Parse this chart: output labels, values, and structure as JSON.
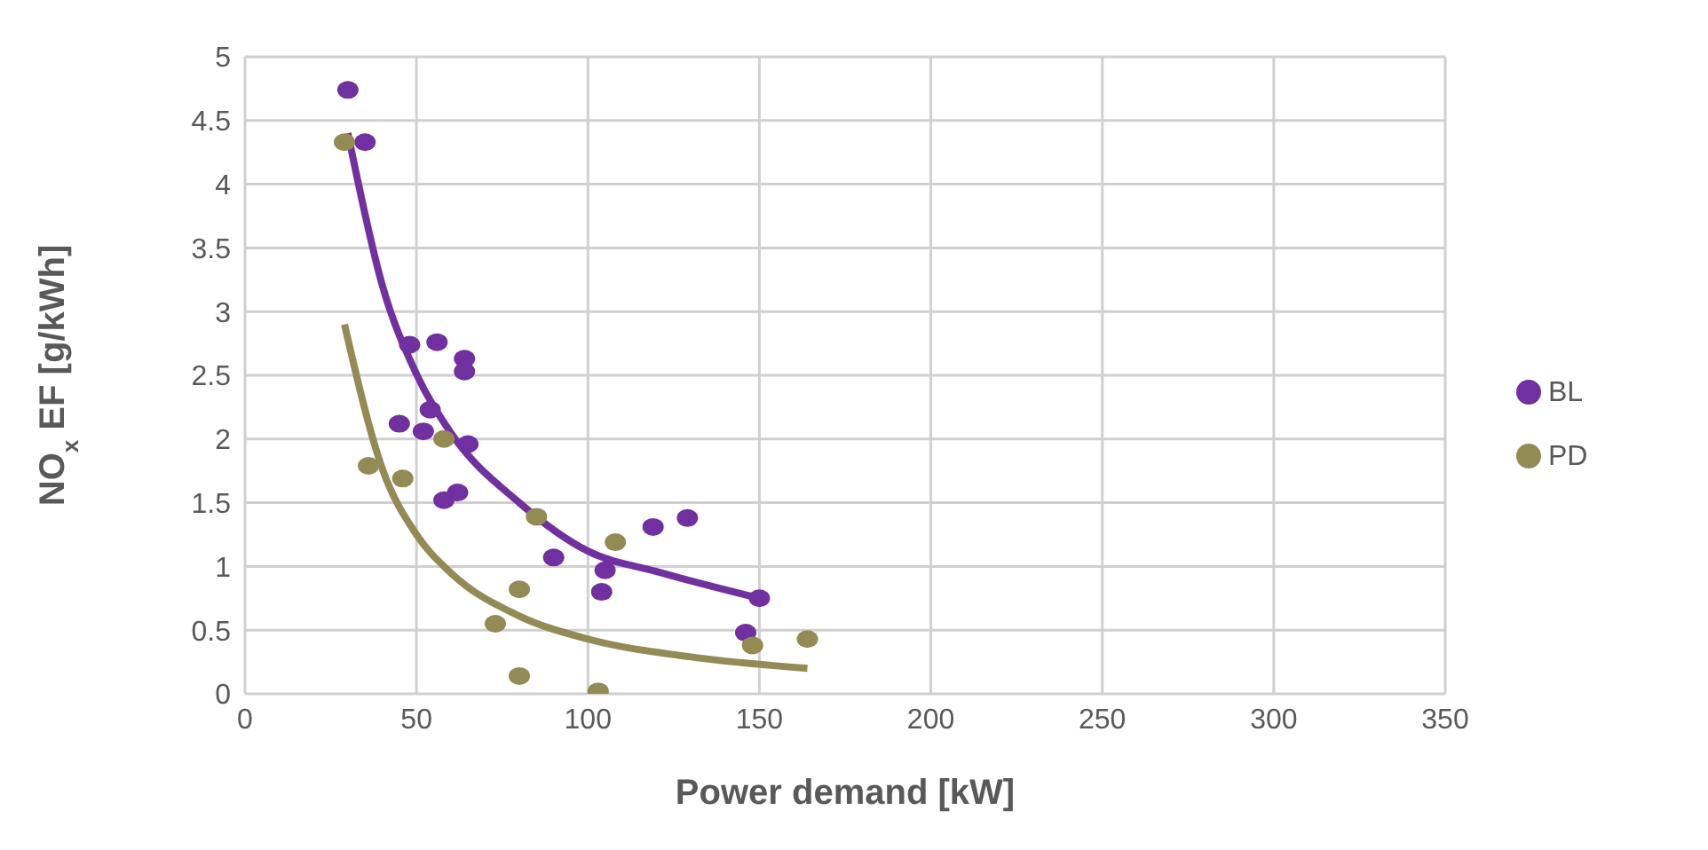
{
  "chart_data": {
    "type": "scatter",
    "xlabel": "Power demand [kW]",
    "ylabel": "NO$_{x}$ EF [g/kWh]",
    "xlim": [
      0,
      350
    ],
    "xticks": [
      0,
      50,
      100,
      150,
      200,
      250,
      300,
      350
    ],
    "ylim": [
      0,
      5
    ],
    "yticks": [
      0,
      0.5,
      1,
      1.5,
      2,
      2.5,
      3,
      3.5,
      4,
      4.5,
      5
    ],
    "grid": true,
    "legend": "right",
    "series": [
      {
        "name": "BL",
        "color": "#7030a0",
        "marker": "circle",
        "x": [
          30,
          35,
          48,
          56,
          64,
          64,
          45,
          54,
          52,
          65,
          58,
          62,
          90,
          105,
          104,
          119,
          129,
          150,
          146
        ],
        "values": [
          4.74,
          4.33,
          2.74,
          2.76,
          2.63,
          2.53,
          2.12,
          2.23,
          2.06,
          1.96,
          1.52,
          1.58,
          1.07,
          0.97,
          0.8,
          1.31,
          1.38,
          0.75,
          0.48
        ]
      },
      {
        "name": "PD",
        "color": "#948a54",
        "marker": "circle",
        "x": [
          29,
          36,
          46,
          58,
          85,
          80,
          73,
          80,
          103,
          108,
          148,
          164
        ],
        "values": [
          4.33,
          1.79,
          1.69,
          2.0,
          1.39,
          0.82,
          0.55,
          0.14,
          0.02,
          1.19,
          0.38,
          0.43
        ]
      },
      {
        "type": "line",
        "color": "#7030a0",
        "marker": "none",
        "x": [
          30,
          40,
          50,
          60,
          80,
          100,
          120,
          150
        ],
        "values": [
          4.4,
          3.21,
          2.51,
          2.05,
          1.5,
          1.12,
          0.96,
          0.75
        ]
      },
      {
        "type": "line",
        "color": "#948a54",
        "marker": "none",
        "x": [
          29,
          40,
          50,
          60,
          80,
          100,
          130,
          164
        ],
        "values": [
          2.9,
          1.77,
          1.25,
          0.95,
          0.61,
          0.43,
          0.29,
          0.2
        ]
      }
    ]
  }
}
